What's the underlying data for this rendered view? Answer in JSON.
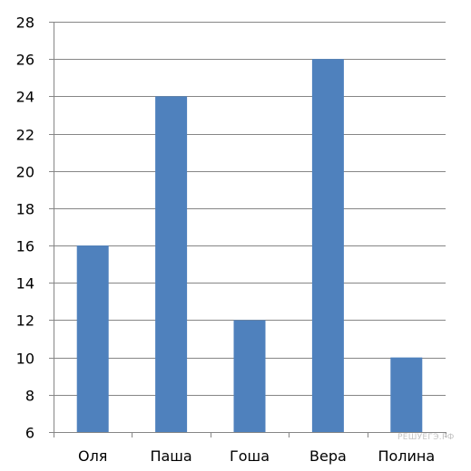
{
  "chart_data": {
    "type": "bar",
    "title": "",
    "xlabel": "",
    "ylabel": "",
    "categories": [
      "Оля",
      "Паша",
      "Гоша",
      "Вера",
      "Полина"
    ],
    "values": [
      16,
      24,
      12,
      26,
      10
    ],
    "ylim": [
      6,
      28
    ],
    "ytick_step": 2,
    "grid": true,
    "legend": "none",
    "bar_color": "#4f81bd",
    "grid_color": "#868686"
  },
  "watermark": "РЕШУЕГЭ.РФ"
}
